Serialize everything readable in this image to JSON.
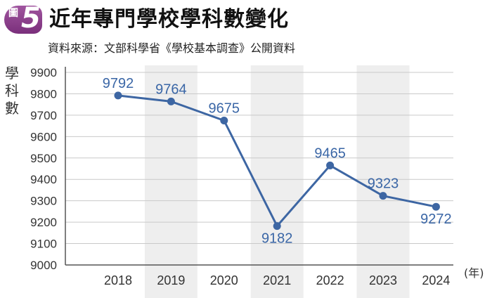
{
  "header": {
    "figure_label": "圖",
    "figure_number": "5",
    "title": "近年專門學校學科數變化",
    "subtitle": "資料來源：文部科學省《學校基本調查》公開資料"
  },
  "colors": {
    "line": "#3d66a3",
    "badge": "#8b3b8c",
    "band": "#eeeeee"
  },
  "chart_data": {
    "type": "line",
    "categories": [
      "2018",
      "2019",
      "2020",
      "2021",
      "2022",
      "2023",
      "2024"
    ],
    "series": [
      {
        "values": [
          9792,
          9764,
          9675,
          9182,
          9465,
          9323,
          9272
        ]
      }
    ],
    "data_labels": [
      "9792",
      "9764",
      "9675",
      "9182",
      "9465",
      "9323",
      "9272"
    ],
    "title": "近年專門學校學科數變化",
    "xlabel": "(年)",
    "ylabel": "學科數",
    "ylim": [
      9000,
      9900
    ],
    "yticks": [
      "9000",
      "9100",
      "9200",
      "9300",
      "9400",
      "9500",
      "9600",
      "9700",
      "9800",
      "9900"
    ],
    "grid": true,
    "alternating_bands": true,
    "markers": true
  }
}
